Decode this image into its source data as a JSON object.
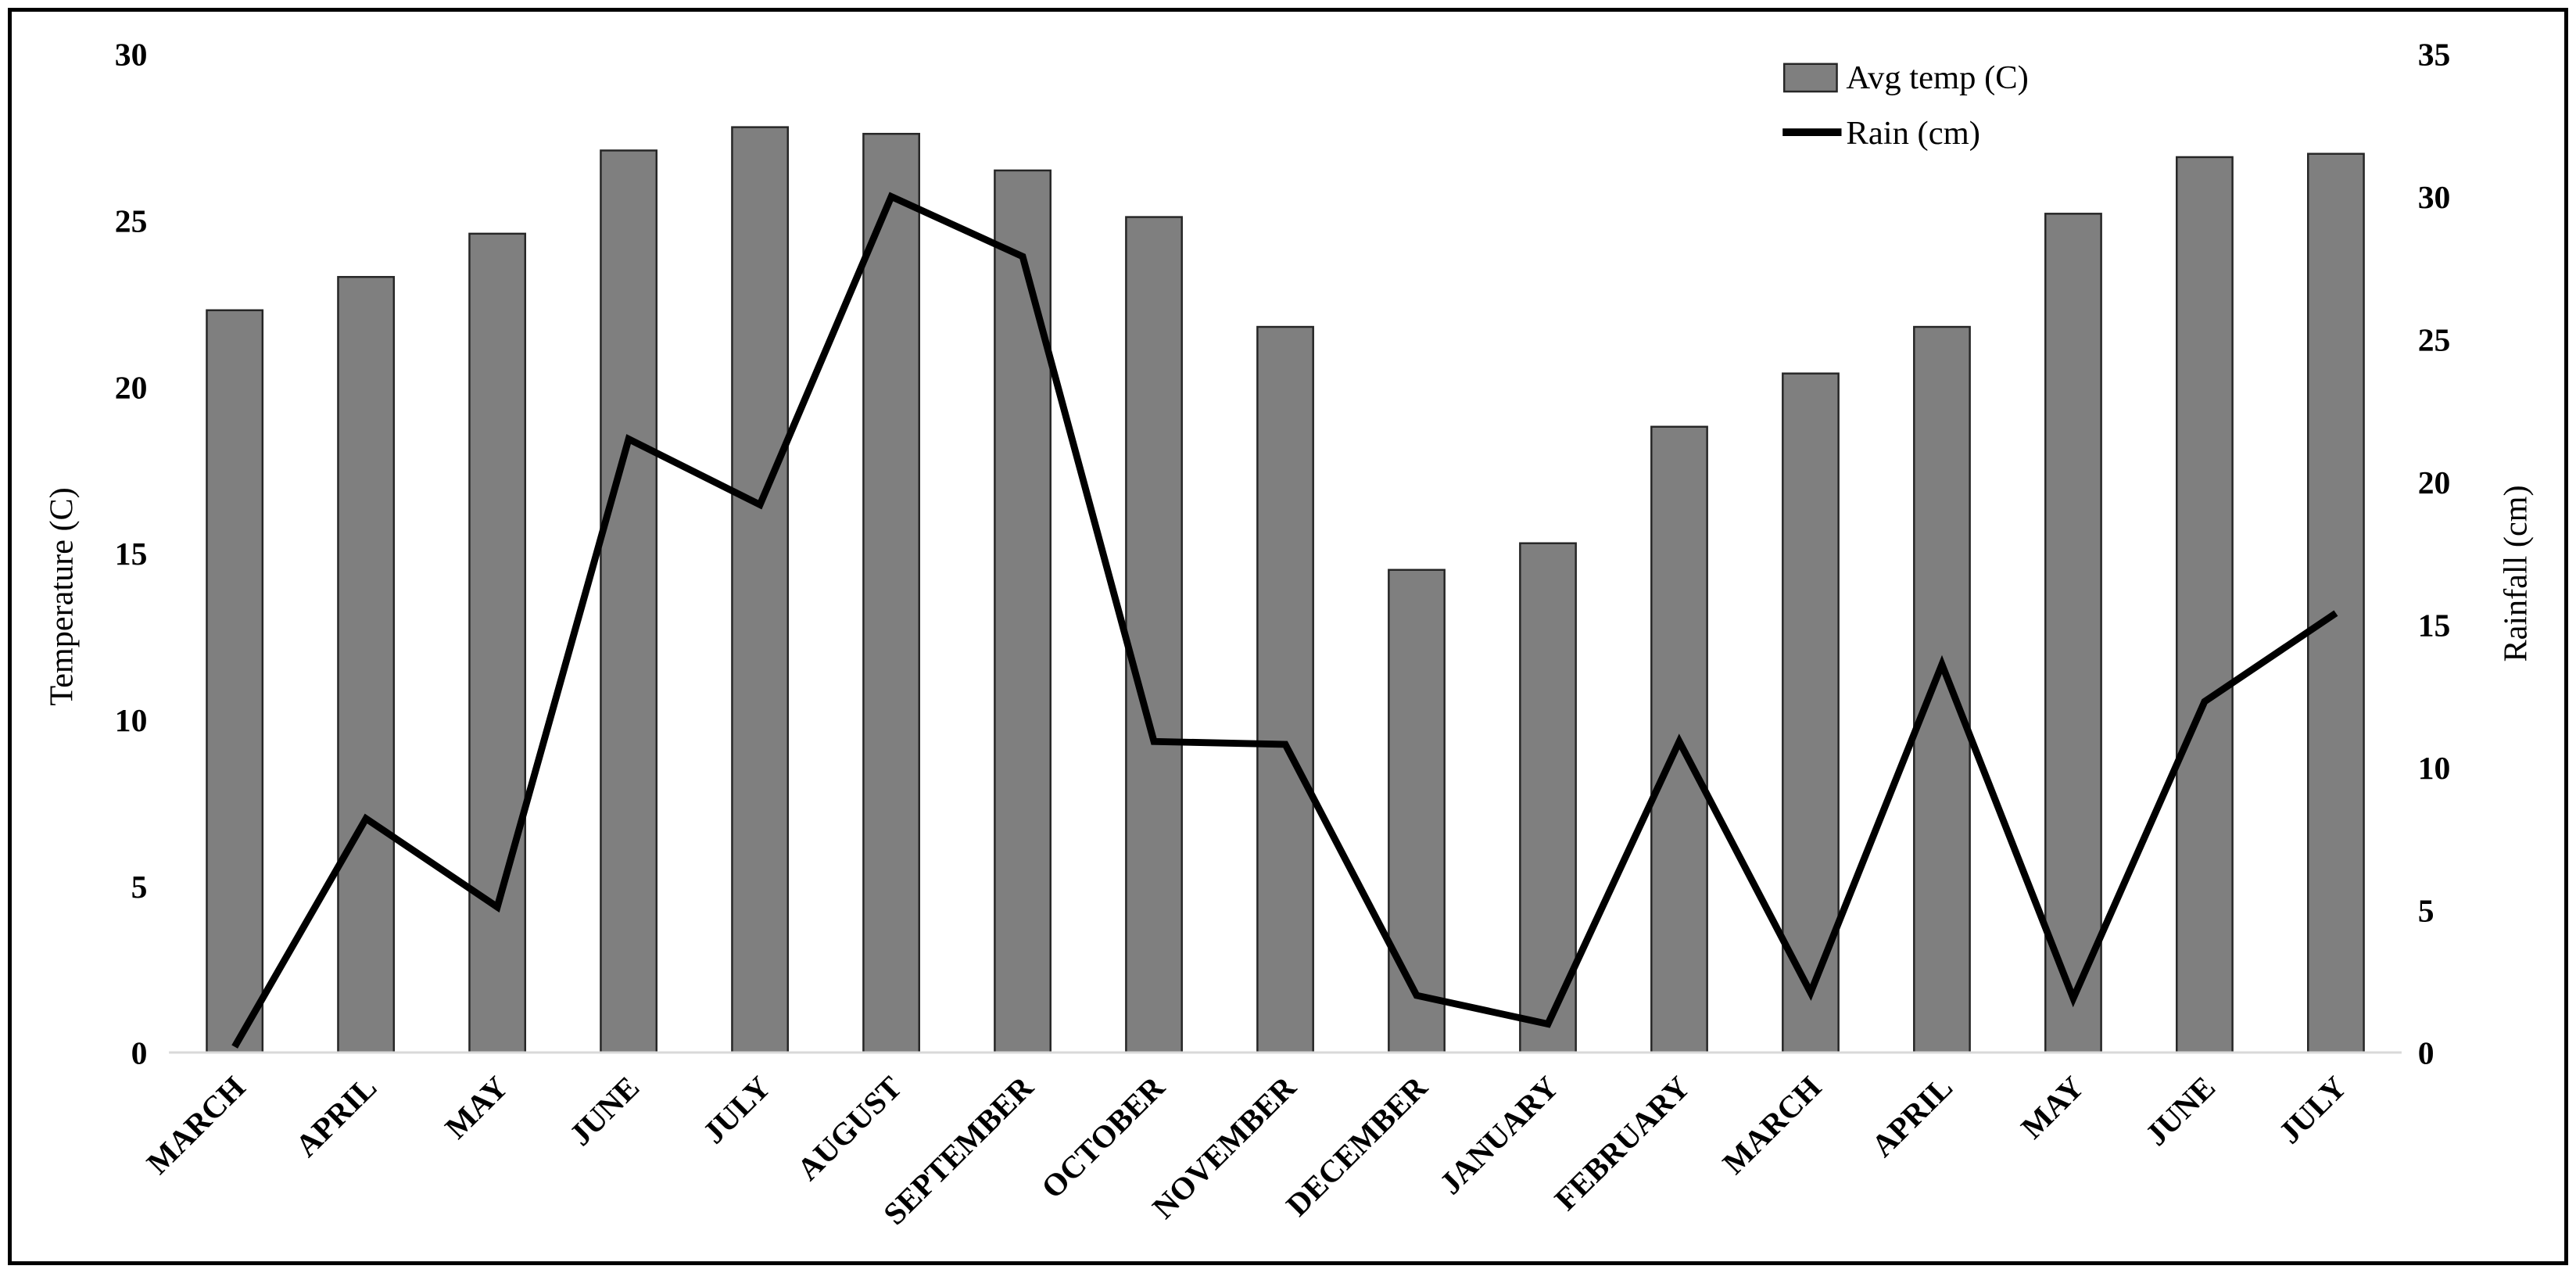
{
  "chart_data": {
    "type": "bar",
    "subtype": "combo-bar-line-dual-axis",
    "categories": [
      "MARCH",
      "APRIL",
      "MAY",
      "JUNE",
      "JULY",
      "AUGUST",
      "SEPTEMBER",
      "OCTOBER",
      "NOVEMBER",
      "DECEMBER",
      "JANUARY",
      "FEBRUARY",
      "MARCH",
      "APRIL",
      "MAY",
      "JUNE",
      "JULY"
    ],
    "series": [
      {
        "name": "Avg temp (C)",
        "type": "bar",
        "axis": "left",
        "values": [
          22.3,
          23.3,
          24.6,
          27.1,
          27.8,
          27.6,
          26.5,
          25.1,
          21.8,
          14.5,
          15.3,
          18.8,
          20.4,
          21.8,
          25.2,
          26.9,
          27.0
        ]
      },
      {
        "name": "Rain (cm)",
        "type": "line",
        "axis": "right",
        "values": [
          0.2,
          8.2,
          5.1,
          21.5,
          19.2,
          30.0,
          27.9,
          10.9,
          10.8,
          2.0,
          1.0,
          10.9,
          2.1,
          13.6,
          1.9,
          12.3,
          15.4
        ]
      }
    ],
    "left_axis": {
      "title": "Temperature (C)",
      "min": 0,
      "max": 30,
      "step": 5,
      "ticks": [
        "0",
        "5",
        "10",
        "15",
        "20",
        "25",
        "30"
      ]
    },
    "right_axis": {
      "title": "Rainfall (cm)",
      "min": 0,
      "max": 35,
      "step": 5,
      "ticks": [
        "0",
        "5",
        "10",
        "15",
        "20",
        "25",
        "30",
        "35"
      ]
    },
    "legend": {
      "position": "top-right",
      "items": [
        {
          "label": "Avg temp (C)",
          "swatch": "bar"
        },
        {
          "label": "Rain (cm)",
          "swatch": "line"
        }
      ]
    },
    "grid": false
  },
  "colors": {
    "bar_fill": "#7f7f7f",
    "bar_border": "#262626",
    "line": "#000000",
    "axis_line": "#d9d9d9",
    "background": "#ffffff",
    "frame_border": "#000000"
  }
}
